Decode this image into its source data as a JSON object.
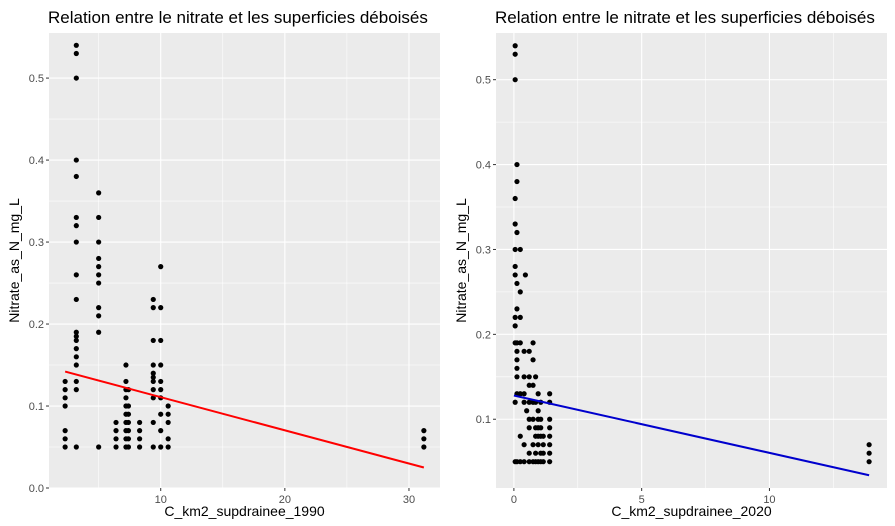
{
  "chart_data": [
    {
      "type": "scatter",
      "title": "Relation entre le nitrate et les superficies déboisés",
      "xlabel": "C_km2_supdrainee_1990",
      "ylabel": "Nitrate_as_N_mg_L",
      "xlim": [
        1.0,
        32.5
      ],
      "ylim": [
        0.0,
        0.555
      ],
      "x_ticks": [
        10,
        20,
        30
      ],
      "y_ticks": [
        0.0,
        0.1,
        0.2,
        0.3,
        0.4,
        0.5
      ],
      "y_tick_labels": [
        "0.0",
        "0.1",
        "0.2",
        "0.3",
        "0.4",
        "0.5"
      ],
      "grid": true,
      "points": [
        {
          "x": 2.3,
          "y": 0.05
        },
        {
          "x": 2.3,
          "y": 0.06
        },
        {
          "x": 2.3,
          "y": 0.07
        },
        {
          "x": 2.3,
          "y": 0.1
        },
        {
          "x": 2.3,
          "y": 0.11
        },
        {
          "x": 2.3,
          "y": 0.12
        },
        {
          "x": 2.3,
          "y": 0.13
        },
        {
          "x": 3.2,
          "y": 0.54
        },
        {
          "x": 3.2,
          "y": 0.53
        },
        {
          "x": 3.2,
          "y": 0.5
        },
        {
          "x": 3.2,
          "y": 0.4
        },
        {
          "x": 3.2,
          "y": 0.38
        },
        {
          "x": 3.2,
          "y": 0.33
        },
        {
          "x": 3.2,
          "y": 0.32
        },
        {
          "x": 3.2,
          "y": 0.3
        },
        {
          "x": 3.2,
          "y": 0.26
        },
        {
          "x": 3.2,
          "y": 0.23
        },
        {
          "x": 3.2,
          "y": 0.19
        },
        {
          "x": 3.2,
          "y": 0.185
        },
        {
          "x": 3.2,
          "y": 0.18
        },
        {
          "x": 3.2,
          "y": 0.17
        },
        {
          "x": 3.2,
          "y": 0.16
        },
        {
          "x": 3.2,
          "y": 0.15
        },
        {
          "x": 3.2,
          "y": 0.13
        },
        {
          "x": 3.2,
          "y": 0.12
        },
        {
          "x": 3.2,
          "y": 0.05
        },
        {
          "x": 5.0,
          "y": 0.36
        },
        {
          "x": 5.0,
          "y": 0.33
        },
        {
          "x": 5.0,
          "y": 0.3
        },
        {
          "x": 5.0,
          "y": 0.28
        },
        {
          "x": 5.0,
          "y": 0.27
        },
        {
          "x": 5.0,
          "y": 0.26
        },
        {
          "x": 5.0,
          "y": 0.25
        },
        {
          "x": 5.0,
          "y": 0.22
        },
        {
          "x": 5.0,
          "y": 0.21
        },
        {
          "x": 5.0,
          "y": 0.19
        },
        {
          "x": 5.0,
          "y": 0.05
        },
        {
          "x": 6.4,
          "y": 0.08
        },
        {
          "x": 6.4,
          "y": 0.07
        },
        {
          "x": 6.4,
          "y": 0.06
        },
        {
          "x": 6.4,
          "y": 0.05
        },
        {
          "x": 7.2,
          "y": 0.15
        },
        {
          "x": 7.2,
          "y": 0.13
        },
        {
          "x": 7.2,
          "y": 0.12
        },
        {
          "x": 7.2,
          "y": 0.11
        },
        {
          "x": 7.2,
          "y": 0.1
        },
        {
          "x": 7.2,
          "y": 0.09
        },
        {
          "x": 7.2,
          "y": 0.08
        },
        {
          "x": 7.2,
          "y": 0.07
        },
        {
          "x": 7.2,
          "y": 0.06
        },
        {
          "x": 7.2,
          "y": 0.05
        },
        {
          "x": 7.4,
          "y": 0.12
        },
        {
          "x": 7.4,
          "y": 0.1
        },
        {
          "x": 7.4,
          "y": 0.09
        },
        {
          "x": 7.4,
          "y": 0.08
        },
        {
          "x": 7.4,
          "y": 0.07
        },
        {
          "x": 7.4,
          "y": 0.06
        },
        {
          "x": 7.4,
          "y": 0.05
        },
        {
          "x": 8.3,
          "y": 0.08
        },
        {
          "x": 8.3,
          "y": 0.07
        },
        {
          "x": 8.3,
          "y": 0.06
        },
        {
          "x": 8.3,
          "y": 0.05
        },
        {
          "x": 9.4,
          "y": 0.23
        },
        {
          "x": 9.4,
          "y": 0.22
        },
        {
          "x": 9.4,
          "y": 0.18
        },
        {
          "x": 9.4,
          "y": 0.15
        },
        {
          "x": 9.4,
          "y": 0.14
        },
        {
          "x": 9.4,
          "y": 0.135
        },
        {
          "x": 9.4,
          "y": 0.13
        },
        {
          "x": 9.4,
          "y": 0.12
        },
        {
          "x": 9.4,
          "y": 0.11
        },
        {
          "x": 9.4,
          "y": 0.08
        },
        {
          "x": 9.4,
          "y": 0.05
        },
        {
          "x": 10.0,
          "y": 0.27
        },
        {
          "x": 10.0,
          "y": 0.22
        },
        {
          "x": 10.0,
          "y": 0.18
        },
        {
          "x": 10.0,
          "y": 0.15
        },
        {
          "x": 10.0,
          "y": 0.13
        },
        {
          "x": 10.0,
          "y": 0.12
        },
        {
          "x": 10.0,
          "y": 0.11
        },
        {
          "x": 10.0,
          "y": 0.09
        },
        {
          "x": 10.0,
          "y": 0.07
        },
        {
          "x": 10.0,
          "y": 0.05
        },
        {
          "x": 10.6,
          "y": 0.1
        },
        {
          "x": 10.6,
          "y": 0.09
        },
        {
          "x": 10.6,
          "y": 0.08
        },
        {
          "x": 10.6,
          "y": 0.06
        },
        {
          "x": 10.6,
          "y": 0.05
        },
        {
          "x": 31.2,
          "y": 0.07
        },
        {
          "x": 31.2,
          "y": 0.06
        },
        {
          "x": 31.2,
          "y": 0.05
        }
      ],
      "trend": {
        "x": [
          2.3,
          31.2
        ],
        "y": [
          0.142,
          0.025
        ],
        "color": "#ff0000"
      }
    },
    {
      "type": "scatter",
      "title": "Relation entre le nitrate et les superficies déboisés",
      "xlabel": "C_km2_supdrainee_2020",
      "ylabel": "Nitrate_as_N_mg_L",
      "xlim": [
        -0.7,
        14.6
      ],
      "ylim": [
        0.019,
        0.555
      ],
      "x_ticks": [
        0,
        5,
        10
      ],
      "y_ticks": [
        0.1,
        0.2,
        0.3,
        0.4,
        0.5
      ],
      "y_tick_labels": [
        "0.1",
        "0.2",
        "0.3",
        "0.4",
        "0.5"
      ],
      "grid": true,
      "points": [
        {
          "x": 0.05,
          "y": 0.05
        },
        {
          "x": 0.05,
          "y": 0.54
        },
        {
          "x": 0.05,
          "y": 0.53
        },
        {
          "x": 0.05,
          "y": 0.5
        },
        {
          "x": 0.05,
          "y": 0.36
        },
        {
          "x": 0.05,
          "y": 0.33
        },
        {
          "x": 0.05,
          "y": 0.3
        },
        {
          "x": 0.05,
          "y": 0.28
        },
        {
          "x": 0.05,
          "y": 0.27
        },
        {
          "x": 0.05,
          "y": 0.22
        },
        {
          "x": 0.05,
          "y": 0.21
        },
        {
          "x": 0.05,
          "y": 0.19
        },
        {
          "x": 0.05,
          "y": 0.12
        },
        {
          "x": 0.12,
          "y": 0.4
        },
        {
          "x": 0.12,
          "y": 0.38
        },
        {
          "x": 0.12,
          "y": 0.32
        },
        {
          "x": 0.12,
          "y": 0.26
        },
        {
          "x": 0.12,
          "y": 0.23
        },
        {
          "x": 0.12,
          "y": 0.19
        },
        {
          "x": 0.12,
          "y": 0.18
        },
        {
          "x": 0.12,
          "y": 0.17
        },
        {
          "x": 0.12,
          "y": 0.16
        },
        {
          "x": 0.12,
          "y": 0.15
        },
        {
          "x": 0.12,
          "y": 0.13
        },
        {
          "x": 0.12,
          "y": 0.05
        },
        {
          "x": 0.25,
          "y": 0.3
        },
        {
          "x": 0.25,
          "y": 0.25
        },
        {
          "x": 0.25,
          "y": 0.22
        },
        {
          "x": 0.25,
          "y": 0.19
        },
        {
          "x": 0.25,
          "y": 0.13
        },
        {
          "x": 0.25,
          "y": 0.08
        },
        {
          "x": 0.25,
          "y": 0.05
        },
        {
          "x": 0.4,
          "y": 0.18
        },
        {
          "x": 0.4,
          "y": 0.15
        },
        {
          "x": 0.4,
          "y": 0.13
        },
        {
          "x": 0.4,
          "y": 0.12
        },
        {
          "x": 0.4,
          "y": 0.07
        },
        {
          "x": 0.4,
          "y": 0.05
        },
        {
          "x": 0.45,
          "y": 0.27
        },
        {
          "x": 0.5,
          "y": 0.11
        },
        {
          "x": 0.6,
          "y": 0.18
        },
        {
          "x": 0.6,
          "y": 0.15
        },
        {
          "x": 0.6,
          "y": 0.14
        },
        {
          "x": 0.6,
          "y": 0.12
        },
        {
          "x": 0.6,
          "y": 0.1
        },
        {
          "x": 0.6,
          "y": 0.09
        },
        {
          "x": 0.6,
          "y": 0.06
        },
        {
          "x": 0.6,
          "y": 0.05
        },
        {
          "x": 0.75,
          "y": 0.19
        },
        {
          "x": 0.75,
          "y": 0.17
        },
        {
          "x": 0.75,
          "y": 0.14
        },
        {
          "x": 0.75,
          "y": 0.12
        },
        {
          "x": 0.75,
          "y": 0.1
        },
        {
          "x": 0.75,
          "y": 0.07
        },
        {
          "x": 0.75,
          "y": 0.05
        },
        {
          "x": 0.85,
          "y": 0.15
        },
        {
          "x": 0.85,
          "y": 0.12
        },
        {
          "x": 0.85,
          "y": 0.09
        },
        {
          "x": 0.85,
          "y": 0.08
        },
        {
          "x": 0.85,
          "y": 0.06
        },
        {
          "x": 0.85,
          "y": 0.05
        },
        {
          "x": 0.95,
          "y": 0.13
        },
        {
          "x": 0.95,
          "y": 0.11
        },
        {
          "x": 0.95,
          "y": 0.1
        },
        {
          "x": 0.95,
          "y": 0.09
        },
        {
          "x": 0.95,
          "y": 0.08
        },
        {
          "x": 0.95,
          "y": 0.07
        },
        {
          "x": 0.95,
          "y": 0.05
        },
        {
          "x": 1.05,
          "y": 0.12
        },
        {
          "x": 1.05,
          "y": 0.1
        },
        {
          "x": 1.05,
          "y": 0.09
        },
        {
          "x": 1.05,
          "y": 0.08
        },
        {
          "x": 1.05,
          "y": 0.06
        },
        {
          "x": 1.05,
          "y": 0.05
        },
        {
          "x": 1.15,
          "y": 0.08
        },
        {
          "x": 1.15,
          "y": 0.07
        },
        {
          "x": 1.15,
          "y": 0.06
        },
        {
          "x": 1.15,
          "y": 0.05
        },
        {
          "x": 1.4,
          "y": 0.13
        },
        {
          "x": 1.4,
          "y": 0.12
        },
        {
          "x": 1.4,
          "y": 0.1
        },
        {
          "x": 1.4,
          "y": 0.09
        },
        {
          "x": 1.4,
          "y": 0.08
        },
        {
          "x": 1.4,
          "y": 0.07
        },
        {
          "x": 1.4,
          "y": 0.06
        },
        {
          "x": 1.4,
          "y": 0.05
        },
        {
          "x": 13.9,
          "y": 0.07
        },
        {
          "x": 13.9,
          "y": 0.06
        },
        {
          "x": 13.9,
          "y": 0.05
        }
      ],
      "trend": {
        "x": [
          0.0,
          13.9
        ],
        "y": [
          0.128,
          0.034
        ],
        "color": "#0000cd"
      }
    }
  ]
}
